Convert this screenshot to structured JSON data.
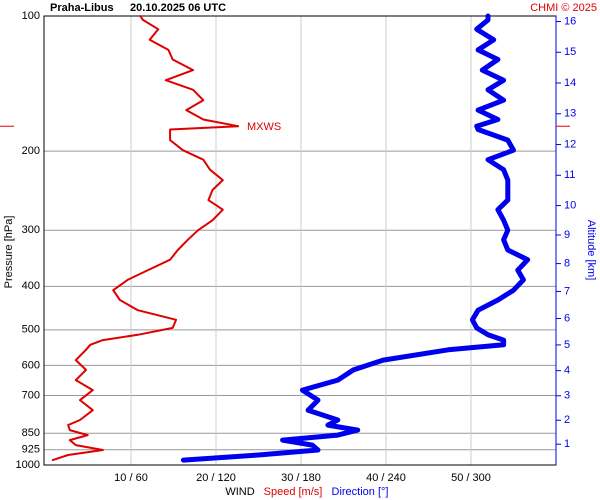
{
  "chart_data": {
    "type": "profile",
    "title": "Praha-Libus",
    "subtitle": "20.10.2025 06 UTC",
    "credit": "CHMI © 2025",
    "y_label": "Pressure [hPa]",
    "y2_label": "Altitude [km]",
    "x_label": "WIND",
    "log_y": true,
    "grid": true,
    "ylim": [
      1000,
      100
    ],
    "yticks": [
      100,
      200,
      300,
      400,
      500,
      600,
      700,
      850,
      925,
      1000
    ],
    "y2ticks": [
      1,
      2,
      3,
      4,
      5,
      6,
      7,
      8,
      9,
      10,
      11,
      12,
      13,
      14,
      15,
      16
    ],
    "xlim": [
      0,
      60
    ],
    "x2lim": [
      0,
      360
    ],
    "xticks": [
      {
        "value": 10,
        "label": "10 / 60"
      },
      {
        "value": 20,
        "label": "20 / 120"
      },
      {
        "value": 30,
        "label": "30 / 180"
      },
      {
        "value": 40,
        "label": "40 / 240"
      },
      {
        "value": 50,
        "label": "50 / 300"
      }
    ],
    "annotation": {
      "text": "MXWS",
      "pressure": 176
    },
    "y": [
      975,
      950,
      926,
      903,
      880,
      858,
      836,
      815,
      794,
      755,
      717,
      681,
      647,
      614,
      584,
      554,
      540,
      527,
      513,
      495,
      475,
      452,
      429,
      408,
      387,
      368,
      349,
      332,
      315,
      300,
      285,
      270,
      257,
      244,
      232,
      220,
      209,
      199,
      189,
      179,
      176,
      170,
      162,
      154,
      146,
      139,
      132,
      125,
      119,
      113,
      107,
      102,
      100
    ],
    "series": [
      {
        "name": "Speed [m/s]",
        "color": "#e00000",
        "width": 2,
        "values": [
          0.8,
          2.6,
          6.7,
          3.5,
          2.8,
          4.9,
          2.8,
          2.6,
          4.0,
          5.5,
          4.0,
          5.5,
          3.5,
          4.7,
          3.5,
          4.7,
          5.2,
          6.7,
          10.8,
          14.9,
          15.3,
          10.8,
          8.7,
          7.9,
          9.6,
          12.0,
          14.6,
          15.5,
          16.7,
          17.9,
          19.6,
          20.8,
          19.1,
          19.6,
          20.8,
          19.3,
          18.5,
          16.1,
          14.6,
          14.6,
          22.6,
          18.5,
          16.5,
          18.5,
          17.3,
          14.1,
          17.3,
          14.9,
          14.4,
          12.2,
          13.2,
          11.4,
          11.1
        ]
      },
      {
        "name": "Direction [°]",
        "color": "#0000ee",
        "width": 5,
        "axis": "x2",
        "values": [
          97,
          150,
          192,
          188,
          167,
          206,
          220,
          199,
          206,
          185,
          192,
          181,
          206,
          217,
          238,
          284,
          323,
          323,
          312,
          304,
          301,
          305,
          319,
          330,
          337,
          333,
          340,
          326,
          323,
          326,
          323,
          319,
          326,
          326,
          326,
          323,
          312,
          330,
          326,
          305,
          304,
          319,
          305,
          323,
          312,
          323,
          308,
          319,
          305,
          316,
          304,
          312,
          312
        ]
      }
    ]
  }
}
